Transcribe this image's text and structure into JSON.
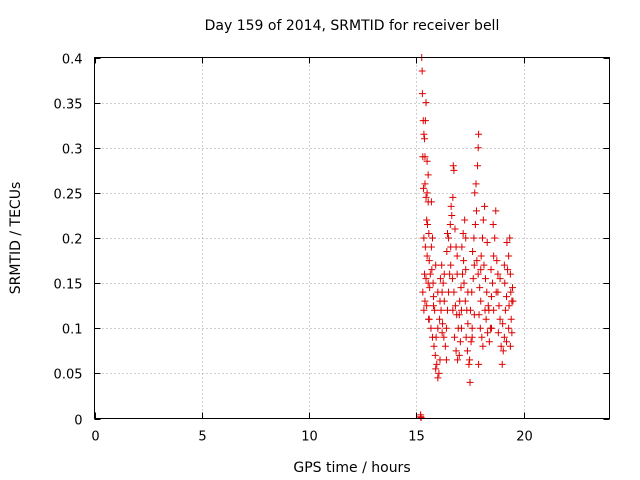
{
  "chart_data": {
    "type": "scatter",
    "title": "Day 159 of 2014, SRMTID for receiver bell",
    "xlabel": "GPS time / hours",
    "ylabel": "SRMTID / TECUs",
    "xlim": [
      0,
      24
    ],
    "ylim": [
      0,
      0.4
    ],
    "xticks": [
      0,
      5,
      10,
      15,
      20
    ],
    "xtick_labels": [
      "0",
      "5",
      "10",
      "15",
      "20"
    ],
    "yticks": [
      0,
      0.05,
      0.1,
      0.15,
      0.2,
      0.25,
      0.3,
      0.35,
      0.4
    ],
    "ytick_labels": [
      "0",
      "0.05",
      "0.1",
      "0.15",
      "0.2",
      "0.25",
      "0.3",
      "0.35",
      "0.4"
    ],
    "grid": true,
    "marker": "+",
    "colors": {
      "series": "#dd0000"
    },
    "series": [
      {
        "points": [
          [
            15.2,
            0.002
          ],
          [
            15.2,
            0.004
          ],
          [
            15.22,
            0.001
          ],
          [
            15.25,
            0.4
          ],
          [
            15.27,
            0.385
          ],
          [
            15.28,
            0.36
          ],
          [
            15.32,
            0.33
          ],
          [
            15.35,
            0.315
          ],
          [
            15.3,
            0.29
          ],
          [
            15.38,
            0.31
          ],
          [
            15.45,
            0.35
          ],
          [
            15.42,
            0.33
          ],
          [
            15.4,
            0.29
          ],
          [
            15.5,
            0.285
          ],
          [
            15.55,
            0.27
          ],
          [
            15.33,
            0.255
          ],
          [
            15.4,
            0.26
          ],
          [
            15.45,
            0.245
          ],
          [
            15.5,
            0.25
          ],
          [
            15.55,
            0.24
          ],
          [
            15.48,
            0.22
          ],
          [
            15.52,
            0.215
          ],
          [
            15.58,
            0.205
          ],
          [
            15.35,
            0.2
          ],
          [
            15.42,
            0.19
          ],
          [
            15.5,
            0.18
          ],
          [
            15.6,
            0.175
          ],
          [
            15.38,
            0.16
          ],
          [
            15.45,
            0.155
          ],
          [
            15.55,
            0.15
          ],
          [
            15.62,
            0.145
          ],
          [
            15.3,
            0.14
          ],
          [
            15.4,
            0.13
          ],
          [
            15.48,
            0.125
          ],
          [
            15.35,
            0.12
          ],
          [
            15.57,
            0.11
          ],
          [
            15.65,
            0.16
          ],
          [
            15.7,
            0.19
          ],
          [
            15.75,
            0.2
          ],
          [
            15.72,
            0.165
          ],
          [
            15.78,
            0.15
          ],
          [
            15.8,
            0.135
          ],
          [
            15.85,
            0.12
          ],
          [
            15.68,
            0.1
          ],
          [
            15.75,
            0.09
          ],
          [
            15.82,
            0.08
          ],
          [
            15.88,
            0.07
          ],
          [
            15.9,
            0.055
          ],
          [
            15.95,
            0.06
          ],
          [
            16.0,
            0.045
          ],
          [
            16.05,
            0.05
          ],
          [
            15.92,
            0.09
          ],
          [
            16.0,
            0.1
          ],
          [
            16.08,
            0.11
          ],
          [
            16.1,
            0.13
          ],
          [
            16.15,
            0.12
          ],
          [
            16.2,
            0.14
          ],
          [
            16.12,
            0.155
          ],
          [
            16.18,
            0.17
          ],
          [
            16.25,
            0.15
          ],
          [
            16.3,
            0.13
          ],
          [
            16.22,
            0.105
          ],
          [
            16.28,
            0.09
          ],
          [
            16.35,
            0.08
          ],
          [
            16.4,
            0.1
          ],
          [
            16.45,
            0.12
          ],
          [
            16.5,
            0.14
          ],
          [
            16.55,
            0.16
          ],
          [
            16.6,
            0.17
          ],
          [
            16.42,
            0.185
          ],
          [
            16.5,
            0.2
          ],
          [
            16.58,
            0.215
          ],
          [
            16.62,
            0.235
          ],
          [
            16.7,
            0.245
          ],
          [
            16.75,
            0.275
          ],
          [
            16.72,
            0.28
          ],
          [
            16.65,
            0.225
          ],
          [
            16.8,
            0.21
          ],
          [
            16.85,
            0.19
          ],
          [
            16.9,
            0.18
          ],
          [
            16.68,
            0.155
          ],
          [
            16.75,
            0.14
          ],
          [
            16.82,
            0.125
          ],
          [
            16.88,
            0.115
          ],
          [
            16.95,
            0.1
          ],
          [
            16.78,
            0.09
          ],
          [
            16.85,
            0.075
          ],
          [
            16.92,
            0.065
          ],
          [
            17.0,
            0.07
          ],
          [
            17.05,
            0.085
          ],
          [
            17.1,
            0.1
          ],
          [
            17.02,
            0.13
          ],
          [
            17.08,
            0.145
          ],
          [
            17.15,
            0.16
          ],
          [
            17.2,
            0.175
          ],
          [
            17.12,
            0.19
          ],
          [
            17.18,
            0.205
          ],
          [
            17.25,
            0.22
          ],
          [
            17.3,
            0.2
          ],
          [
            17.22,
            0.15
          ],
          [
            17.28,
            0.13
          ],
          [
            17.35,
            0.12
          ],
          [
            17.4,
            0.105
          ],
          [
            17.32,
            0.09
          ],
          [
            17.38,
            0.075
          ],
          [
            17.45,
            0.06
          ],
          [
            17.5,
            0.04
          ],
          [
            17.48,
            0.065
          ],
          [
            17.55,
            0.085
          ],
          [
            17.6,
            0.1
          ],
          [
            17.52,
            0.12
          ],
          [
            17.58,
            0.14
          ],
          [
            17.65,
            0.155
          ],
          [
            17.7,
            0.17
          ],
          [
            17.62,
            0.185
          ],
          [
            17.68,
            0.2
          ],
          [
            17.75,
            0.215
          ],
          [
            17.8,
            0.23
          ],
          [
            17.72,
            0.25
          ],
          [
            17.78,
            0.26
          ],
          [
            17.85,
            0.28
          ],
          [
            17.88,
            0.3
          ],
          [
            17.9,
            0.315
          ],
          [
            17.82,
            0.175
          ],
          [
            17.88,
            0.16
          ],
          [
            17.95,
            0.145
          ],
          [
            18.0,
            0.13
          ],
          [
            17.92,
            0.115
          ],
          [
            17.98,
            0.1
          ],
          [
            18.05,
            0.09
          ],
          [
            18.1,
            0.08
          ],
          [
            18.02,
            0.18
          ],
          [
            18.08,
            0.2
          ],
          [
            18.12,
            0.22
          ],
          [
            18.18,
            0.235
          ],
          [
            18.15,
            0.17
          ],
          [
            18.22,
            0.155
          ],
          [
            18.28,
            0.14
          ],
          [
            18.35,
            0.125
          ],
          [
            18.25,
            0.11
          ],
          [
            18.32,
            0.095
          ],
          [
            18.4,
            0.085
          ],
          [
            18.45,
            0.1
          ],
          [
            18.38,
            0.12
          ],
          [
            18.5,
            0.135
          ],
          [
            18.55,
            0.15
          ],
          [
            18.48,
            0.165
          ],
          [
            18.6,
            0.18
          ],
          [
            18.65,
            0.2
          ],
          [
            18.58,
            0.215
          ],
          [
            18.7,
            0.23
          ],
          [
            18.75,
            0.175
          ],
          [
            18.8,
            0.16
          ],
          [
            18.72,
            0.14
          ],
          [
            18.85,
            0.125
          ],
          [
            18.9,
            0.11
          ],
          [
            18.82,
            0.095
          ],
          [
            18.95,
            0.08
          ],
          [
            19.0,
            0.06
          ],
          [
            19.05,
            0.075
          ],
          [
            19.1,
            0.09
          ],
          [
            19.02,
            0.105
          ],
          [
            19.15,
            0.12
          ],
          [
            19.2,
            0.135
          ],
          [
            19.12,
            0.15
          ],
          [
            19.25,
            0.165
          ],
          [
            19.3,
            0.18
          ],
          [
            19.22,
            0.195
          ],
          [
            19.35,
            0.2
          ],
          [
            19.38,
            0.16
          ],
          [
            19.4,
            0.14
          ],
          [
            19.32,
            0.125
          ],
          [
            19.42,
            0.11
          ],
          [
            19.45,
            0.095
          ],
          [
            19.38,
            0.08
          ],
          [
            19.48,
            0.145
          ],
          [
            19.5,
            0.13
          ],
          [
            15.6,
            0.11
          ],
          [
            15.8,
            0.125
          ],
          [
            16.0,
            0.14
          ],
          [
            16.3,
            0.16
          ],
          [
            16.6,
            0.19
          ],
          [
            16.9,
            0.16
          ],
          [
            17.1,
            0.12
          ],
          [
            17.4,
            0.14
          ],
          [
            17.6,
            0.09
          ],
          [
            17.9,
            0.06
          ],
          [
            18.2,
            0.12
          ],
          [
            18.5,
            0.1
          ],
          [
            18.8,
            0.14
          ],
          [
            19.1,
            0.17
          ],
          [
            19.3,
            0.1
          ],
          [
            15.9,
            0.17
          ],
          [
            16.2,
            0.095
          ],
          [
            16.4,
            0.065
          ],
          [
            16.7,
            0.12
          ],
          [
            17.0,
            0.115
          ],
          [
            17.3,
            0.165
          ],
          [
            17.7,
            0.115
          ],
          [
            18.0,
            0.165
          ],
          [
            18.3,
            0.195
          ],
          [
            18.6,
            0.12
          ],
          [
            18.9,
            0.155
          ],
          [
            19.2,
            0.085
          ],
          [
            19.45,
            0.13
          ],
          [
            15.7,
            0.24
          ],
          [
            16.1,
            0.065
          ],
          [
            16.45,
            0.205
          ]
        ]
      }
    ]
  }
}
